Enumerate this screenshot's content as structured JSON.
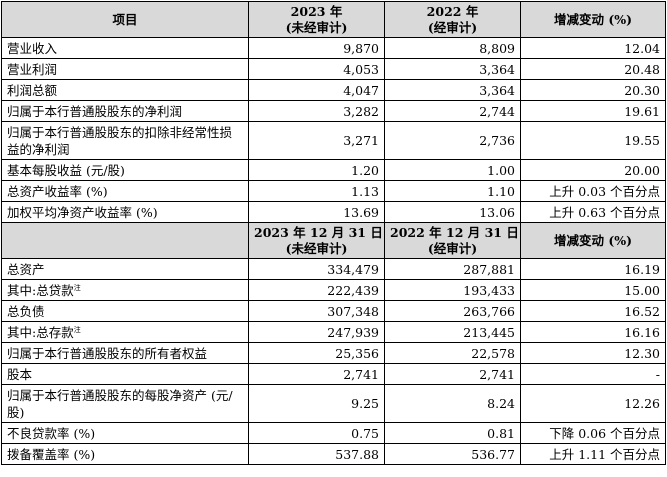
{
  "header1": {
    "item": "项目",
    "col1": [
      "2023 年",
      "(未经审计)"
    ],
    "col2": [
      "2022 年",
      "(经审计)"
    ],
    "col3": "增减变动 (%)"
  },
  "section1": [
    {
      "label": "营业收入",
      "v1": "9,870",
      "v2": "8,809",
      "v3": "12.04"
    },
    {
      "label": "营业利润",
      "v1": "4,053",
      "v2": "3,364",
      "v3": "20.48"
    },
    {
      "label": "利润总额",
      "v1": "4,047",
      "v2": "3,364",
      "v3": "20.30"
    },
    {
      "label": "归属于本行普通股股东的净利润",
      "v1": "3,282",
      "v2": "2,744",
      "v3": "19.61"
    },
    {
      "label": "归属于本行普通股股东的扣除非经常性损益的净利润",
      "v1": "3,271",
      "v2": "2,736",
      "v3": "19.55"
    },
    {
      "label": "基本每股收益 (元/股)",
      "v1": "1.20",
      "v2": "1.00",
      "v3": "20.00"
    },
    {
      "label": "总资产收益率 (%)",
      "v1": "1.13",
      "v2": "1.10",
      "v3": "上升 0.03 个百分点"
    },
    {
      "label": "加权平均净资产收益率 (%)",
      "v1": "13.69",
      "v2": "13.06",
      "v3": "上升 0.63 个百分点"
    }
  ],
  "header2": {
    "col1": [
      "2023 年 12 月 31 日",
      "(未经审计)"
    ],
    "col2": [
      "2022 年 12 月 31 日",
      "(经审计)"
    ],
    "col3": "增减变动 (%)"
  },
  "section2": [
    {
      "label": "总资产",
      "note": "",
      "v1": "334,479",
      "v2": "287,881",
      "v3": "16.19"
    },
    {
      "label": "其中:总贷款",
      "note": "注",
      "v1": "222,439",
      "v2": "193,433",
      "v3": "15.00"
    },
    {
      "label": "总负债",
      "note": "",
      "v1": "307,348",
      "v2": "263,766",
      "v3": "16.52"
    },
    {
      "label": "其中:总存款",
      "note": "注",
      "v1": "247,939",
      "v2": "213,445",
      "v3": "16.16"
    },
    {
      "label": "归属于本行普通股股东的所有者权益",
      "note": "",
      "v1": "25,356",
      "v2": "22,578",
      "v3": "12.30"
    },
    {
      "label": "股本",
      "note": "",
      "v1": "2,741",
      "v2": "2,741",
      "v3": "-"
    },
    {
      "label": "归属于本行普通股股东的每股净资产 (元/股)",
      "note": "",
      "v1": "9.25",
      "v2": "8.24",
      "v3": "12.26"
    },
    {
      "label": "不良贷款率 (%)",
      "note": "",
      "v1": "0.75",
      "v2": "0.81",
      "v3": "下降 0.06 个百分点"
    },
    {
      "label": "拨备覆盖率 (%)",
      "note": "",
      "v1": "537.88",
      "v2": "536.77",
      "v3": "上升 1.11 个百分点"
    }
  ]
}
